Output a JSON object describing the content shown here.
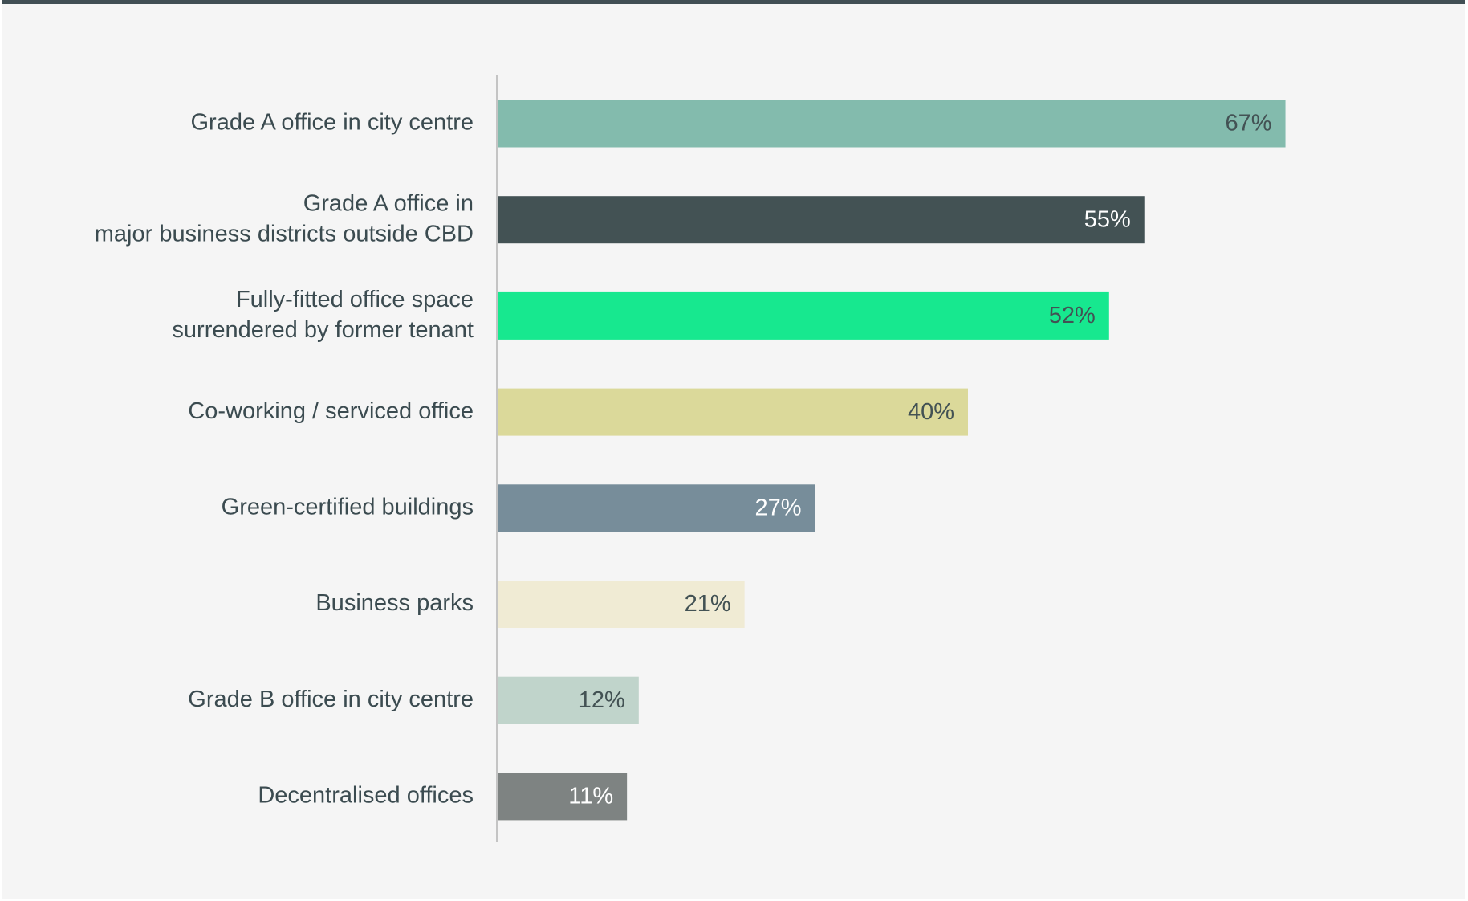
{
  "chart_data": {
    "type": "bar",
    "orientation": "horizontal",
    "title": "",
    "xlabel": "",
    "ylabel": "",
    "xlim": [
      0,
      100
    ],
    "grid": false,
    "legend": "none",
    "categories": [
      [
        "Grade A office in city centre"
      ],
      [
        "Grade A office in",
        "major business districts outside CBD"
      ],
      [
        "Fully-fitted office space",
        "surrendered by former tenant"
      ],
      [
        "Co-working / serviced office"
      ],
      [
        "Green-certified buildings"
      ],
      [
        "Business parks"
      ],
      [
        "Grade B office in city centre"
      ],
      [
        "Decentralised offices"
      ]
    ],
    "values": [
      67,
      55,
      52,
      40,
      27,
      21,
      12,
      11
    ],
    "value_labels": [
      "67%",
      "55%",
      "52%",
      "40%",
      "27%",
      "21%",
      "12%",
      "11%"
    ],
    "bar_colors": [
      "#83bbad",
      "#435254",
      "#17e88f",
      "#dbd99a",
      "#778d9a",
      "#f0ebd4",
      "#c0d4cb",
      "#7e8382"
    ],
    "value_label_colors": [
      "#435254",
      "#ffffff",
      "#435254",
      "#435254",
      "#ffffff",
      "#435254",
      "#435254",
      "#ffffff"
    ]
  }
}
